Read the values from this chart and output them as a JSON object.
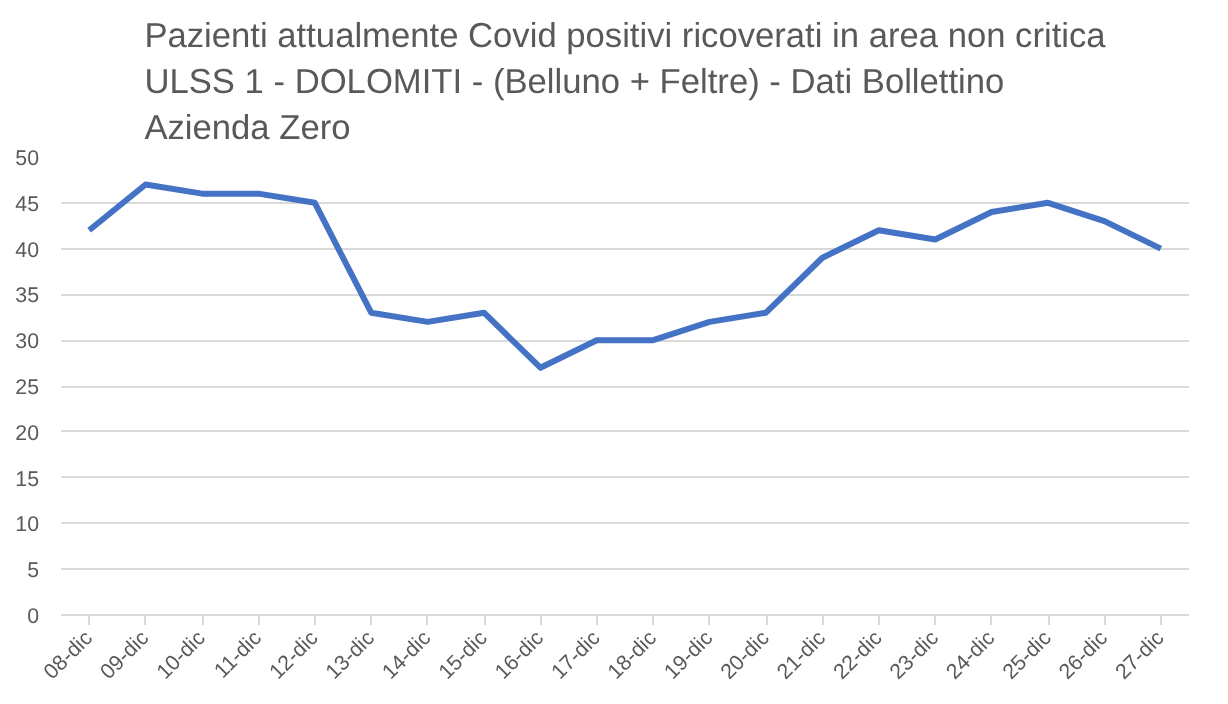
{
  "chart_data": {
    "type": "line",
    "title": "Pazienti attualmente Covid positivi ricoverati in area non critica\nULSS 1 - DOLOMITI  - (Belluno + Feltre) - Dati Bollettino\nAzienda Zero",
    "categories": [
      "08-dic",
      "09-dic",
      "10-dic",
      "11-dic",
      "12-dic",
      "13-dic",
      "14-dic",
      "15-dic",
      "16-dic",
      "17-dic",
      "18-dic",
      "19-dic",
      "20-dic",
      "21-dic",
      "22-dic",
      "23-dic",
      "24-dic",
      "25-dic",
      "26-dic",
      "27-dic"
    ],
    "series": [
      {
        "color": "#4472c4",
        "values": [
          42,
          47,
          46,
          46,
          45,
          33,
          32,
          33,
          27,
          30,
          30,
          32,
          33,
          39,
          42,
          41,
          44,
          45,
          43,
          40
        ]
      }
    ],
    "ylim": [
      0,
      50
    ],
    "yticks": [
      0,
      5,
      10,
      15,
      20,
      25,
      30,
      35,
      40,
      45,
      50
    ],
    "grid": "y",
    "marker": "none",
    "line_style": "solid"
  }
}
